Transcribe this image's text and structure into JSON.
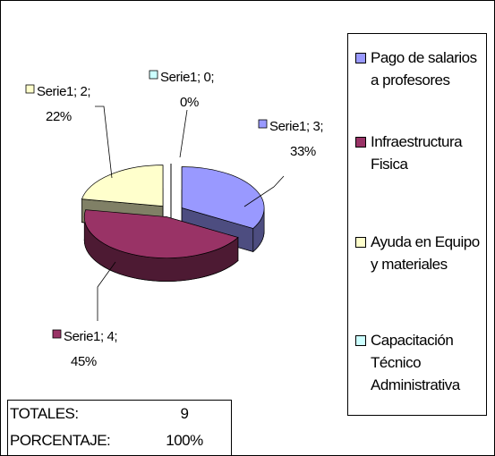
{
  "chart_data": {
    "type": "pie3d",
    "categories": [
      "Pago de salarios a profesores",
      "Infraestructura Fisica",
      "Ayuda en Equipo y materiales",
      "Capacitación Técnico Administrativa"
    ],
    "values": [
      3,
      4,
      2,
      0
    ],
    "value_labels": [
      [
        "Serie1; 3;",
        "33%"
      ],
      [
        "Serie1; 4;",
        "45%"
      ],
      [
        "Serie1; 2;",
        "22%"
      ],
      [
        "Serie1; 0;",
        "0%"
      ]
    ],
    "colors": [
      "#9999ff",
      "#993366",
      "#ffffcc",
      "#ccffff"
    ],
    "legend": "right"
  },
  "totals": {
    "rows": [
      [
        "TOTALES:",
        "9"
      ],
      [
        "PORCENTAJE:",
        "100%"
      ]
    ]
  }
}
